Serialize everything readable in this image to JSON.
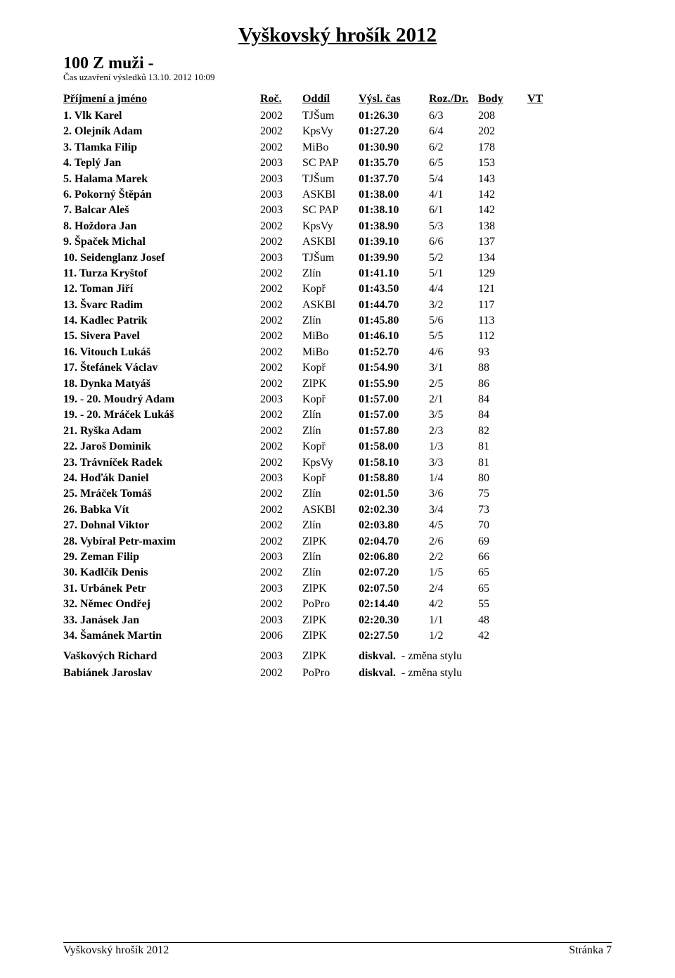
{
  "title": "Vyškovský hrošík 2012",
  "event": "100 Z muži -",
  "closing": "Čas uzavření výsledků 13.10. 2012 10:09",
  "headers": {
    "name": "Příjmení a jméno",
    "roc": "Roč.",
    "club": "Oddíl",
    "time": "Výsl. čas",
    "roz": "Roz./Dr.",
    "body": "Body",
    "vt": "VT"
  },
  "rows": [
    {
      "place": "1.",
      "name": "Vlk Karel",
      "roc": "2002",
      "club": "TJŠum",
      "time": "01:26.30",
      "roz": "6/3",
      "body": "208"
    },
    {
      "place": "2.",
      "name": "Olejník Adam",
      "roc": "2002",
      "club": "KpsVy",
      "time": "01:27.20",
      "roz": "6/4",
      "body": "202"
    },
    {
      "place": "3.",
      "name": "Tlamka Filip",
      "roc": "2002",
      "club": "MiBo",
      "time": "01:30.90",
      "roz": "6/2",
      "body": "178"
    },
    {
      "place": "4.",
      "name": "Teplý Jan",
      "roc": "2003",
      "club": "SC PAP",
      "time": "01:35.70",
      "roz": "6/5",
      "body": "153"
    },
    {
      "place": "5.",
      "name": "Halama Marek",
      "roc": "2003",
      "club": "TJŠum",
      "time": "01:37.70",
      "roz": "5/4",
      "body": "143"
    },
    {
      "place": "6.",
      "name": "Pokorný Štěpán",
      "roc": "2003",
      "club": "ASKBl",
      "time": "01:38.00",
      "roz": "4/1",
      "body": "142"
    },
    {
      "place": "7.",
      "name": "Balcar Aleš",
      "roc": "2003",
      "club": "SC PAP",
      "time": "01:38.10",
      "roz": "6/1",
      "body": "142"
    },
    {
      "place": "8.",
      "name": "Hoždora Jan",
      "roc": "2002",
      "club": "KpsVy",
      "time": "01:38.90",
      "roz": "5/3",
      "body": "138"
    },
    {
      "place": "9.",
      "name": "Špaček Michal",
      "roc": "2002",
      "club": "ASKBl",
      "time": "01:39.10",
      "roz": "6/6",
      "body": "137"
    },
    {
      "place": "10.",
      "name": "Seidenglanz Josef",
      "roc": "2003",
      "club": "TJŠum",
      "time": "01:39.90",
      "roz": "5/2",
      "body": "134"
    },
    {
      "place": "11.",
      "name": "Turza Kryštof",
      "roc": "2002",
      "club": "Zlín",
      "time": "01:41.10",
      "roz": "5/1",
      "body": "129"
    },
    {
      "place": "12.",
      "name": "Toman Jiří",
      "roc": "2002",
      "club": "Kopř",
      "time": "01:43.50",
      "roz": "4/4",
      "body": "121"
    },
    {
      "place": "13.",
      "name": "Švarc Radim",
      "roc": "2002",
      "club": "ASKBl",
      "time": "01:44.70",
      "roz": "3/2",
      "body": "117"
    },
    {
      "place": "14.",
      "name": "Kadlec Patrik",
      "roc": "2002",
      "club": "Zlín",
      "time": "01:45.80",
      "roz": "5/6",
      "body": "113"
    },
    {
      "place": "15.",
      "name": "Sivera Pavel",
      "roc": "2002",
      "club": "MiBo",
      "time": "01:46.10",
      "roz": "5/5",
      "body": "112"
    },
    {
      "place": "16.",
      "name": "Vitouch Lukáš",
      "roc": "2002",
      "club": "MiBo",
      "time": "01:52.70",
      "roz": "4/6",
      "body": "93"
    },
    {
      "place": "17.",
      "name": "Štefánek Václav",
      "roc": "2002",
      "club": "Kopř",
      "time": "01:54.90",
      "roz": "3/1",
      "body": "88"
    },
    {
      "place": "18.",
      "name": "Dynka Matyáš",
      "roc": "2002",
      "club": "ZlPK",
      "time": "01:55.90",
      "roz": "2/5",
      "body": "86"
    },
    {
      "place": "19. - 20.",
      "name": "Moudrý Adam",
      "roc": "2003",
      "club": "Kopř",
      "time": "01:57.00",
      "roz": "2/1",
      "body": "84"
    },
    {
      "place": "19. - 20.",
      "name": "Mráček Lukáš",
      "roc": "2002",
      "club": "Zlín",
      "time": "01:57.00",
      "roz": "3/5",
      "body": "84"
    },
    {
      "place": "21.",
      "name": "Ryška Adam",
      "roc": "2002",
      "club": "Zlín",
      "time": "01:57.80",
      "roz": "2/3",
      "body": "82"
    },
    {
      "place": "22.",
      "name": "Jaroš Dominik",
      "roc": "2002",
      "club": "Kopř",
      "time": "01:58.00",
      "roz": "1/3",
      "body": "81"
    },
    {
      "place": "23.",
      "name": "Trávníček Radek",
      "roc": "2002",
      "club": "KpsVy",
      "time": "01:58.10",
      "roz": "3/3",
      "body": "81"
    },
    {
      "place": "24.",
      "name": "Hoďák Daniel",
      "roc": "2003",
      "club": "Kopř",
      "time": "01:58.80",
      "roz": "1/4",
      "body": "80"
    },
    {
      "place": "25.",
      "name": "Mráček Tomáš",
      "roc": "2002",
      "club": "Zlín",
      "time": "02:01.50",
      "roz": "3/6",
      "body": "75"
    },
    {
      "place": "26.",
      "name": "Babka Vít",
      "roc": "2002",
      "club": "ASKBl",
      "time": "02:02.30",
      "roz": "3/4",
      "body": "73"
    },
    {
      "place": "27.",
      "name": "Dohnal Viktor",
      "roc": "2002",
      "club": "Zlín",
      "time": "02:03.80",
      "roz": "4/5",
      "body": "70"
    },
    {
      "place": "28.",
      "name": "Vybíral Petr-maxim",
      "roc": "2002",
      "club": "ZlPK",
      "time": "02:04.70",
      "roz": "2/6",
      "body": "69"
    },
    {
      "place": "29.",
      "name": "Zeman Filip",
      "roc": "2003",
      "club": "Zlín",
      "time": "02:06.80",
      "roz": "2/2",
      "body": "66"
    },
    {
      "place": "30.",
      "name": "Kadlčík Denis",
      "roc": "2002",
      "club": "Zlín",
      "time": "02:07.20",
      "roz": "1/5",
      "body": "65"
    },
    {
      "place": "31.",
      "name": "Urbánek Petr",
      "roc": "2003",
      "club": "ZlPK",
      "time": "02:07.50",
      "roz": "2/4",
      "body": "65"
    },
    {
      "place": "32.",
      "name": "Němec Ondřej",
      "roc": "2002",
      "club": "PoPro",
      "time": "02:14.40",
      "roz": "4/2",
      "body": "55"
    },
    {
      "place": "33.",
      "name": "Janásek Jan",
      "roc": "2003",
      "club": "ZlPK",
      "time": "02:20.30",
      "roz": "1/1",
      "body": "48"
    },
    {
      "place": "34.",
      "name": "Šamánek Martin",
      "roc": "2006",
      "club": "ZlPK",
      "time": "02:27.50",
      "roz": "1/2",
      "body": "42"
    }
  ],
  "dq": [
    {
      "name": "Vaškových Richard",
      "roc": "2003",
      "club": "ZlPK",
      "time": "diskval.",
      "reason": "- změna stylu"
    },
    {
      "name": "Babiánek Jaroslav",
      "roc": "2002",
      "club": "PoPro",
      "time": "diskval.",
      "reason": "- změna stylu"
    }
  ],
  "footer_left": "Vyškovský hrošík 2012",
  "footer_right": "Stránka 7"
}
